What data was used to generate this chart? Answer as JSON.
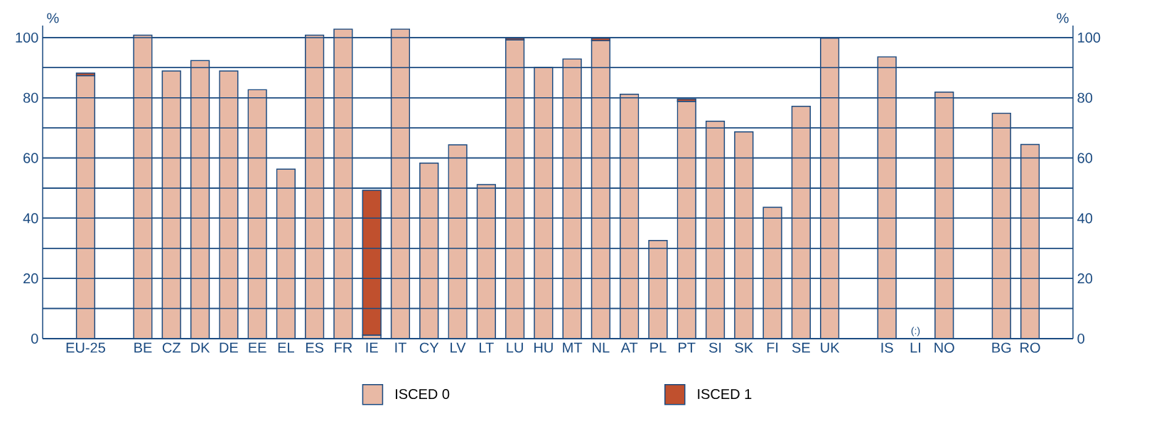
{
  "chart_data": {
    "type": "bar",
    "stacked": true,
    "categories": [
      "EU-25",
      null,
      "BE",
      "CZ",
      "DK",
      "DE",
      "EE",
      "EL",
      "ES",
      "FR",
      "IE",
      "IT",
      "CY",
      "LV",
      "LT",
      "LU",
      "HU",
      "MT",
      "NL",
      "AT",
      "PL",
      "PT",
      "SI",
      "SK",
      "FI",
      "SE",
      "UK",
      null,
      "IS",
      "LI",
      "NO",
      null,
      "BG",
      "RO"
    ],
    "series": [
      {
        "name": "ISCED 0",
        "color": "#e8b9a5",
        "values": [
          87.4,
          null,
          100.8,
          88.9,
          92.4,
          88.9,
          82.7,
          56.3,
          100.8,
          102.8,
          1.2,
          102.8,
          58.3,
          64.4,
          51.2,
          99.2,
          90.1,
          92.9,
          99.0,
          81.2,
          32.6,
          78.8,
          72.2,
          68.7,
          43.6,
          77.2,
          99.8,
          null,
          93.6,
          null,
          81.9,
          null,
          74.9,
          64.5
        ],
        "value_labels": [
          null,
          null,
          null,
          null,
          null,
          null,
          null,
          null,
          null,
          null,
          null,
          null,
          null,
          null,
          null,
          null,
          null,
          null,
          null,
          null,
          null,
          null,
          null,
          null,
          null,
          null,
          null,
          null,
          null,
          "(:)",
          null,
          null,
          null,
          null
        ]
      },
      {
        "name": "ISCED 1",
        "color": "#c0502e",
        "values": [
          0.8,
          null,
          null,
          null,
          null,
          null,
          null,
          null,
          null,
          null,
          48.1,
          null,
          null,
          null,
          null,
          0.6,
          null,
          null,
          0.8,
          null,
          null,
          0.8,
          null,
          null,
          null,
          null,
          null,
          null,
          null,
          null,
          null,
          null,
          null,
          null
        ]
      }
    ],
    "ylabel": "%",
    "y2label": "%",
    "ylim": [
      0,
      104
    ],
    "yticks": [
      0,
      {
        "value": 10,
        "label": null
      },
      20,
      {
        "value": 30,
        "label": null
      },
      40,
      {
        "value": 50,
        "label": null
      },
      60,
      {
        "value": 70,
        "label": null
      },
      80,
      {
        "value": 90,
        "label": null
      },
      100
    ],
    "y2lim": [
      0,
      104
    ],
    "y2ticks": [
      0,
      {
        "value": 10,
        "label": null
      },
      20,
      {
        "value": 30,
        "label": null
      },
      40,
      {
        "value": 50,
        "label": null
      },
      60,
      {
        "value": 70,
        "label": null
      },
      80,
      {
        "value": 90,
        "label": null
      },
      100
    ],
    "grid": "y",
    "legend": "bottom"
  }
}
